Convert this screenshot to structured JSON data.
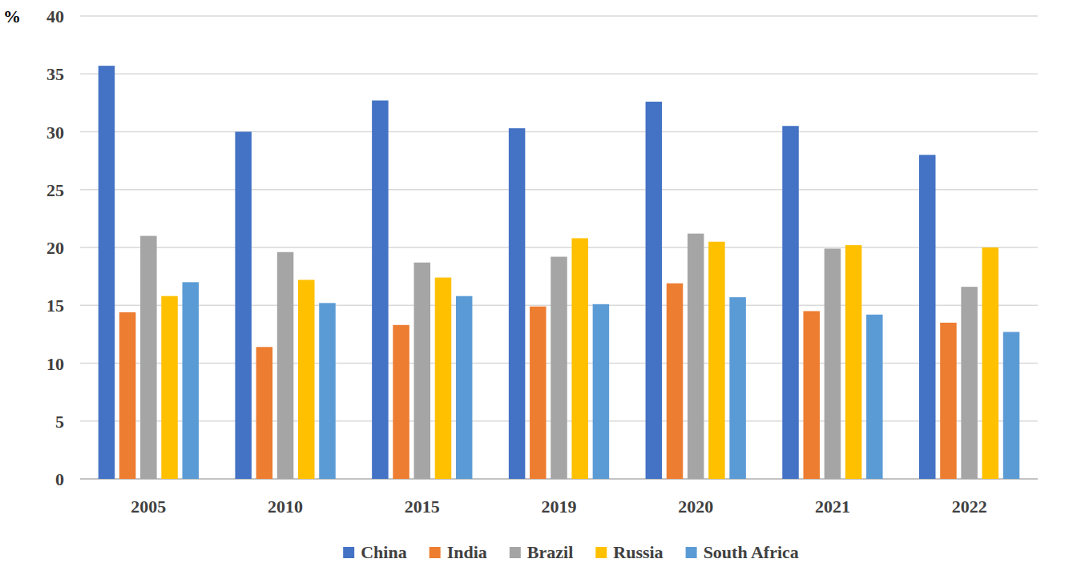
{
  "chart_data": {
    "type": "bar",
    "y_label": "%",
    "categories": [
      "2005",
      "2010",
      "2015",
      "2019",
      "2020",
      "2021",
      "2022"
    ],
    "series": [
      {
        "name": "China",
        "color": "#4472c4",
        "values": [
          35.7,
          30.0,
          32.7,
          30.3,
          32.6,
          30.5,
          28.0
        ]
      },
      {
        "name": "India",
        "color": "#ed7d31",
        "values": [
          14.4,
          11.4,
          13.3,
          14.9,
          16.9,
          14.5,
          13.5
        ]
      },
      {
        "name": "Brazil",
        "color": "#a5a5a5",
        "values": [
          21.0,
          19.6,
          18.7,
          19.2,
          21.2,
          19.9,
          16.6
        ]
      },
      {
        "name": "Russia",
        "color": "#ffc000",
        "values": [
          15.8,
          17.2,
          17.4,
          20.8,
          20.5,
          20.2,
          20.0
        ]
      },
      {
        "name": "South Africa",
        "color": "#5b9bd5",
        "values": [
          17.0,
          15.2,
          15.8,
          15.1,
          15.7,
          14.2,
          12.7
        ]
      }
    ],
    "ylim": [
      0,
      40
    ],
    "yticks": [
      0,
      5,
      10,
      15,
      20,
      25,
      30,
      35,
      40
    ],
    "grid": true,
    "legend": "bottom"
  }
}
